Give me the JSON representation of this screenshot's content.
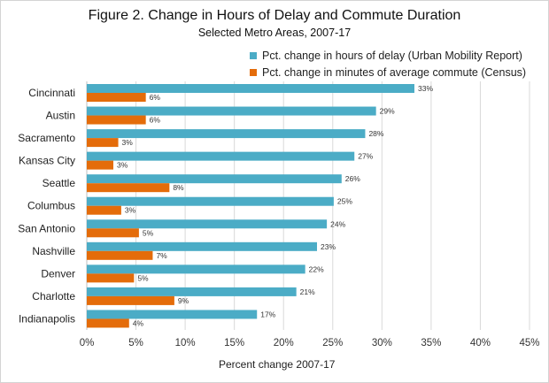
{
  "chart_data": {
    "type": "bar",
    "orientation": "horizontal",
    "title": "Figure 2. Change in Hours of Delay and Commute Duration",
    "subtitle": "Selected Metro Areas, 2007-17",
    "xlabel": "Percent change 2007-17",
    "ylabel": "",
    "xlim": [
      0,
      45
    ],
    "xticks": [
      0,
      5,
      10,
      15,
      20,
      25,
      30,
      35,
      40,
      45
    ],
    "xtick_labels": [
      "0%",
      "5%",
      "10%",
      "15%",
      "20%",
      "25%",
      "30%",
      "35%",
      "40%",
      "45%"
    ],
    "grid": true,
    "legend_position": "top-right",
    "categories": [
      "Cincinnati",
      "Austin",
      "Sacramento",
      "Kansas City",
      "Seattle",
      "Columbus",
      "San Antonio",
      "Nashville",
      "Denver",
      "Charlotte",
      "Indianapolis"
    ],
    "series": [
      {
        "name": "Pct. change in hours of delay (Urban Mobility Report)",
        "color": "#4bacc6",
        "values": [
          33.3,
          29.4,
          28.3,
          27.2,
          25.9,
          25.1,
          24.4,
          23.4,
          22.2,
          21.3,
          17.3
        ],
        "labels": [
          "33%",
          "29%",
          "28%",
          "27%",
          "26%",
          "25%",
          "24%",
          "23%",
          "22%",
          "21%",
          "17%"
        ]
      },
      {
        "name": "Pct. change in minutes of average commute (Census)",
        "color": "#e46c0a",
        "values": [
          6.0,
          6.0,
          3.2,
          2.7,
          8.4,
          3.5,
          5.3,
          6.7,
          4.8,
          8.9,
          4.3
        ],
        "labels": [
          "6%",
          "6%",
          "3%",
          "3%",
          "8%",
          "3%",
          "5%",
          "7%",
          "5%",
          "9%",
          "4%"
        ]
      }
    ]
  }
}
